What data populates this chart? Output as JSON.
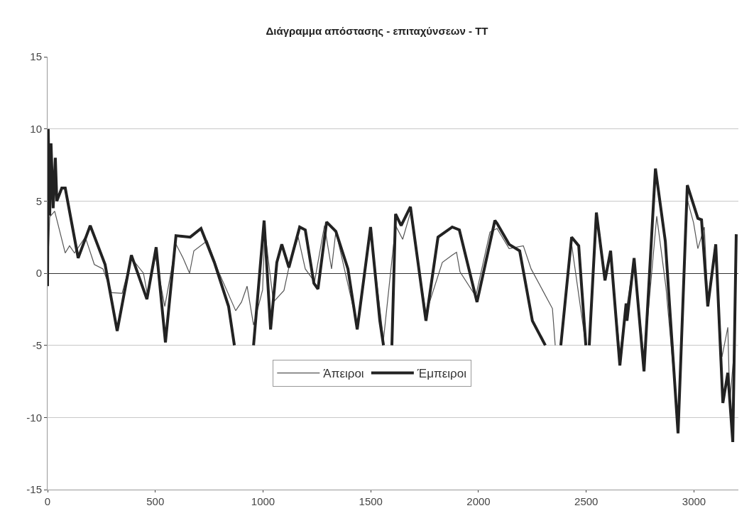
{
  "chart_data": {
    "type": "line",
    "title": "Διάγραμμα απόστασης - επιταχύνσεων - ΤΤ",
    "xlim": [
      0,
      3206
    ],
    "xticks": [
      0,
      500,
      1000,
      1500,
      2000,
      2500,
      3000
    ],
    "ylim": [
      -15,
      15
    ],
    "yticks": [
      -15,
      -10,
      -5,
      0,
      5,
      10,
      15
    ],
    "grid": "y",
    "legend": "bottom",
    "marker": "none",
    "line_style": "solid",
    "series": [
      {
        "name": "Άπειροι",
        "color": "#555555",
        "x": [
          0,
          10,
          33,
          82,
          102,
          125,
          175,
          217,
          257,
          297,
          346,
          389,
          445,
          465,
          498,
          544,
          596,
          629,
          659,
          679,
          741,
          794,
          873,
          900,
          926,
          956,
          998,
          1008,
          1048,
          1097,
          1120,
          1163,
          1196,
          1239,
          1285,
          1318,
          1338,
          1437,
          1499,
          1559,
          1615,
          1648,
          1684,
          1756,
          1832,
          1878,
          1898,
          1914,
          1987,
          2053,
          2086,
          2142,
          2208,
          2244,
          2343,
          2356,
          2370,
          2382,
          2432,
          2498,
          2506,
          2514,
          2547,
          2587,
          2613,
          2656,
          2722,
          2768,
          2827,
          2870,
          2926,
          2969,
          2998,
          3018,
          3048,
          3064,
          3097,
          3130,
          3157,
          3166,
          3190
        ],
        "values": [
          0,
          3.9,
          4.3,
          1.4,
          1.9,
          1.4,
          2.5,
          0.6,
          0.3,
          -1.35,
          -1.4,
          1.05,
          0,
          -1.6,
          1.4,
          -2.3,
          2.0,
          1.05,
          0,
          1.55,
          2.25,
          0.1,
          -2.6,
          -2.0,
          -0.9,
          -3.6,
          -1.15,
          3.0,
          -2.0,
          -1.2,
          0.4,
          2.5,
          0.3,
          -0.6,
          3.3,
          0.3,
          2.9,
          -3.6,
          3.0,
          -4.6,
          3.3,
          2.35,
          4.2,
          -2.8,
          0.75,
          1.25,
          1.45,
          0.1,
          -1.6,
          2.85,
          3.1,
          1.7,
          1.9,
          0.3,
          -2.45,
          -5,
          null,
          -5,
          2.0,
          -5,
          null,
          -5,
          3.8,
          0,
          1.3,
          -5.5,
          1.0,
          -6.0,
          3.95,
          -1.0,
          -10.4,
          5.1,
          3.5,
          1.7,
          3.2,
          -2.0,
          1.6,
          -5.8,
          -3.75,
          -9.0,
          -4.7
        ]
      },
      {
        "name": "Έμπειροι",
        "color": "#222222",
        "x": [
          0,
          3,
          10,
          16,
          26,
          36,
          43,
          66,
          82,
          142,
          198,
          267,
          323,
          389,
          461,
          504,
          547,
          596,
          662,
          712,
          774,
          840,
          867,
          910,
          956,
          1005,
          1035,
          1064,
          1087,
          1120,
          1170,
          1196,
          1236,
          1255,
          1295,
          1338,
          1394,
          1437,
          1499,
          1542,
          1559,
          1578,
          1598,
          1615,
          1641,
          1684,
          1756,
          1812,
          1878,
          1911,
          1993,
          2076,
          2086,
          2142,
          2191,
          2250,
          2310,
          2346,
          2382,
          2432,
          2465,
          2498,
          2506,
          2514,
          2547,
          2587,
          2613,
          2656,
          2685,
          2689,
          2722,
          2768,
          2821,
          2867,
          2926,
          2969,
          3018,
          3035,
          3064,
          3101,
          3134,
          3157,
          3180,
          3196
        ],
        "values": [
          -0.9,
          10,
          4,
          9,
          4.5,
          8,
          5,
          5.9,
          5.9,
          1.05,
          3.3,
          0.6,
          -4.0,
          1.25,
          -1.8,
          1.8,
          -4.8,
          2.6,
          2.5,
          3.1,
          0.75,
          -2.3,
          -5,
          null,
          -5,
          3.65,
          -3.9,
          0.75,
          2.0,
          0.4,
          3.2,
          3.0,
          -0.7,
          -1.1,
          3.55,
          2.9,
          0.3,
          -3.9,
          3.2,
          -3.3,
          -5,
          null,
          -5,
          4.1,
          3.3,
          4.6,
          -3.3,
          2.5,
          3.2,
          3.0,
          -2.0,
          3.65,
          3.45,
          2.0,
          1.55,
          -3.3,
          -5,
          null,
          -5,
          2.5,
          1.9,
          -5,
          null,
          -5,
          4.2,
          -0.5,
          1.55,
          -6.4,
          -2.1,
          -3.3,
          1.05,
          -6.8,
          7.25,
          2.2,
          -11.1,
          6.1,
          3.8,
          3.7,
          -2.3,
          2.0,
          -9.0,
          -6.9,
          -11.7,
          2.7
        ]
      }
    ]
  }
}
